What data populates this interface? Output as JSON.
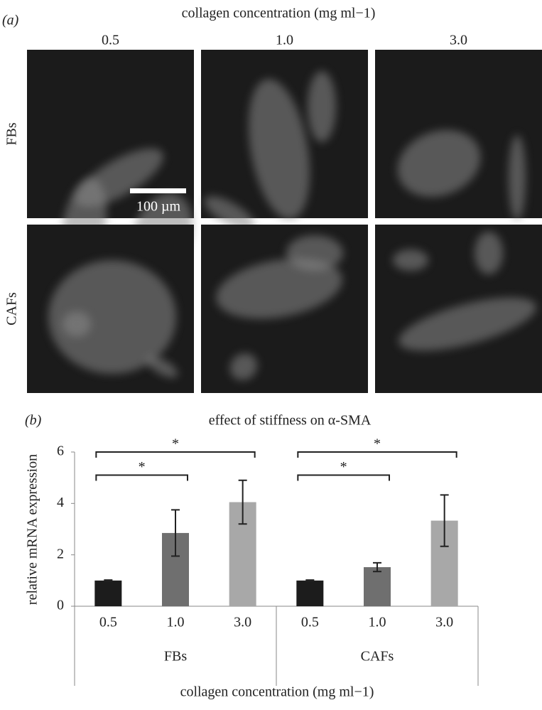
{
  "panel_a": {
    "label": "(a)",
    "title": "collagen concentration (mg ml−1)",
    "columns": [
      "0.5",
      "1.0",
      "3.0"
    ],
    "rows": [
      "FBs",
      "CAFs"
    ],
    "scale_bar": "100 µm"
  },
  "chart_data": {
    "type": "bar",
    "panel_label": "(b)",
    "title": "effect of stiffness on α-SMA",
    "ylabel": "relative mRNA expression",
    "xlabel": "collagen concentration (mg ml−1)",
    "categories": [
      "0.5",
      "1.0",
      "3.0"
    ],
    "colors": [
      "#1c1c1c",
      "#6f6f6f",
      "#a8a8a8"
    ],
    "groups": [
      {
        "name": "FBs",
        "values": [
          1.0,
          2.85,
          4.05
        ],
        "errors": [
          0.02,
          0.9,
          0.85
        ],
        "brackets": [
          {
            "label": "*",
            "from": "0.5",
            "to": "3.0",
            "y": 6.0
          },
          {
            "label": "*",
            "from": "0.5",
            "to": "1.0",
            "y": 5.1
          }
        ]
      },
      {
        "name": "CAFs",
        "values": [
          1.0,
          1.52,
          3.33
        ],
        "errors": [
          0.02,
          0.17,
          1.0
        ],
        "brackets": [
          {
            "label": "*",
            "from": "0.5",
            "to": "3.0",
            "y": 6.0
          },
          {
            "label": "*",
            "from": "0.5",
            "to": "1.0",
            "y": 5.1
          }
        ]
      }
    ],
    "ylim": [
      0,
      6
    ],
    "yticks": [
      0,
      2,
      4,
      6
    ]
  }
}
